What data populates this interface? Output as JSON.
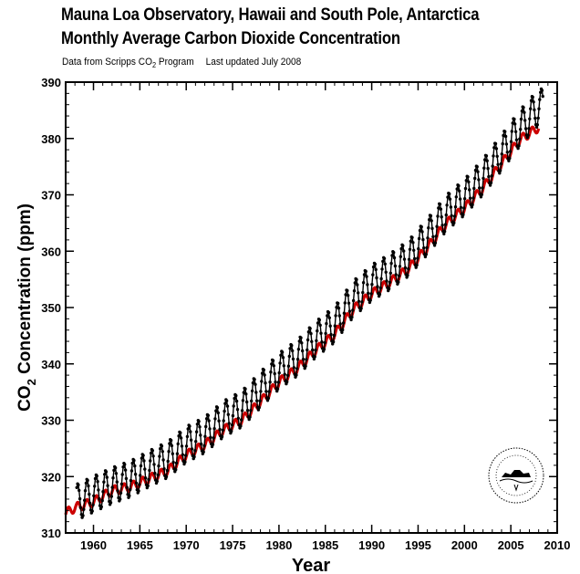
{
  "header": {
    "title_line1": "Mauna Loa Observatory, Hawaii and South Pole, Antarctica",
    "title_line2": "Monthly Average Carbon Dioxide Concentration",
    "source_prefix": "Data from Scripps CO",
    "source_sub": "2",
    "source_suffix": " Program",
    "updated": "Last updated July 2008"
  },
  "chart_data": {
    "type": "line",
    "xlabel": "Year",
    "ylabel_main": "CO",
    "ylabel_sub": "2",
    "ylabel_rest": " Concentration (ppm)",
    "xlim": [
      1957,
      2010
    ],
    "ylim": [
      310,
      390
    ],
    "x_ticks": [
      1960,
      1965,
      1970,
      1975,
      1980,
      1985,
      1990,
      1995,
      2000,
      2005,
      2010
    ],
    "y_ticks": [
      310,
      320,
      330,
      340,
      350,
      360,
      370,
      380,
      390
    ],
    "grid": false,
    "series": [
      {
        "color": "#000000",
        "x_start": 1958.2,
        "x_end": 2008.5,
        "seasonal_amplitude": 3.2,
        "x": [
          1958,
          1960,
          1962,
          1964,
          1966,
          1968,
          1970,
          1972,
          1974,
          1976,
          1978,
          1980,
          1982,
          1984,
          1986,
          1988,
          1990,
          1992,
          1994,
          1996,
          1998,
          2000,
          2002,
          2004,
          2006,
          2008
        ],
        "y": [
          315.3,
          316.9,
          318.4,
          319.6,
          321.4,
          323.0,
          325.7,
          327.4,
          330.2,
          332.0,
          335.4,
          338.7,
          341.1,
          344.4,
          347.0,
          351.5,
          354.4,
          356.4,
          358.8,
          362.6,
          366.7,
          369.6,
          373.2,
          377.5,
          381.9,
          385.6
        ]
      },
      {
        "color": "#cc0000",
        "x_start": 1957.0,
        "x_end": 2008.0,
        "seasonal_amplitude": 0.8,
        "x": [
          1957,
          1958,
          1960,
          1962,
          1964,
          1966,
          1968,
          1970,
          1972,
          1974,
          1976,
          1978,
          1980,
          1982,
          1984,
          1986,
          1988,
          1990,
          1992,
          1994,
          1996,
          1998,
          2000,
          2002,
          2004,
          2006,
          2008
        ],
        "y": [
          313.5,
          314.5,
          315.5,
          317.5,
          318.2,
          319.6,
          321.0,
          323.8,
          325.6,
          328.2,
          330.0,
          333.2,
          336.7,
          339.2,
          342.4,
          345.2,
          349.6,
          352.4,
          354.5,
          356.9,
          360.6,
          364.8,
          367.6,
          371.2,
          375.5,
          379.8,
          382.0
        ]
      }
    ]
  }
}
